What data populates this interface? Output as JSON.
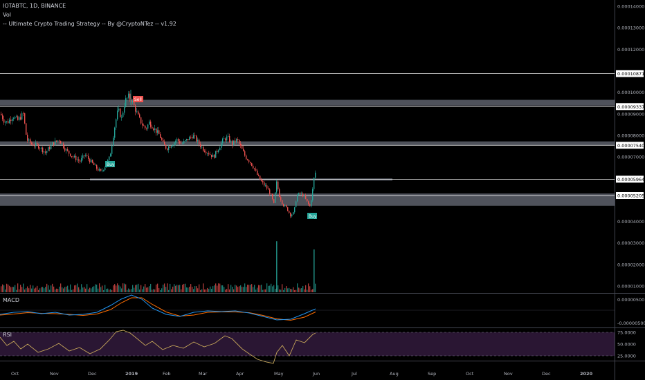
{
  "header": {
    "symbol": "IOTABTC, 1D, BINANCE",
    "vol_label": "Vol",
    "strategy": "-- Ultimate Crypto Trading Strategy -- By @CryptoNTez -- v1.92"
  },
  "panes": {
    "macd_label": "MACD",
    "rsi_label": "RSI"
  },
  "price_axis": {
    "ticks": [
      "0.00014000",
      "0.00013000",
      "0.00012000",
      "0.00010000",
      "0.00009000",
      "0.00008000",
      "0.00007000",
      "0.00004000",
      "0.00003000",
      "0.00002000",
      "0.00001000"
    ],
    "macd_ticks": [
      "0.00000500",
      "-0.00000500"
    ],
    "rsi_ticks": [
      "75.0000",
      "50.0000",
      "25.0000"
    ]
  },
  "level_badges": [
    "0.00010871",
    "0.00009337",
    "0.00007540",
    "0.00005964",
    "0.00005205"
  ],
  "signals": {
    "sell": "Sell",
    "buy1": "Buy",
    "buy2": "Buy"
  },
  "time_axis": [
    "Oct",
    "Nov",
    "Dec",
    "2019",
    "Feb",
    "Mar",
    "Apr",
    "May",
    "Jun",
    "Jul",
    "Aug",
    "Sep",
    "Oct",
    "Nov",
    "Dec",
    "2020"
  ],
  "colors": {
    "up": "#26a69a",
    "down": "#ef5350",
    "zone": "#5d606b",
    "macd_line": "#2196f3",
    "signal_line": "#ff6d00",
    "rsi_line": "#c8a85a",
    "rsi_band": "#2a1633",
    "level_line": "#ffffff"
  },
  "chart_data": {
    "type": "candlestick",
    "price_range": [
      3.6e-05,
      0.000145
    ],
    "horizontal_levels": [
      0.00010871,
      9.337e-05,
      7.54e-05,
      5.964e-05,
      5.205e-05
    ],
    "close_path": [
      [
        0,
        9e-05
      ],
      [
        5,
        8.7e-05
      ],
      [
        10,
        8.6e-05
      ],
      [
        18,
        8.9e-05
      ],
      [
        25,
        8.7e-05
      ],
      [
        33,
        9e-05
      ],
      [
        38,
        7.8e-05
      ],
      [
        45,
        7.6e-05
      ],
      [
        55,
        7.5e-05
      ],
      [
        65,
        7.2e-05
      ],
      [
        75,
        7.6e-05
      ],
      [
        85,
        7.8e-05
      ],
      [
        95,
        7.3e-05
      ],
      [
        105,
        7e-05
      ],
      [
        115,
        6.8e-05
      ],
      [
        122,
        7.1e-05
      ],
      [
        130,
        6.8e-05
      ],
      [
        138,
        6.5e-05
      ],
      [
        145,
        6.3e-05
      ],
      [
        152,
        6.6e-05
      ],
      [
        158,
        7e-05
      ],
      [
        162,
        7.8e-05
      ],
      [
        166,
        8.6e-05
      ],
      [
        170,
        9.2e-05
      ],
      [
        175,
        8.8e-05
      ],
      [
        180,
        9.6e-05
      ],
      [
        185,
        9.8e-05
      ],
      [
        190,
        9.6e-05
      ],
      [
        195,
        9.2e-05
      ],
      [
        200,
        8.8e-05
      ],
      [
        205,
        8.5e-05
      ],
      [
        210,
        8.3e-05
      ],
      [
        215,
        8.6e-05
      ],
      [
        220,
        8.4e-05
      ],
      [
        225,
        8.2e-05
      ],
      [
        230,
        8e-05
      ],
      [
        235,
        7.6e-05
      ],
      [
        240,
        7.4e-05
      ],
      [
        248,
        7.6e-05
      ],
      [
        255,
        7.8e-05
      ],
      [
        262,
        7.6e-05
      ],
      [
        270,
        7.8e-05
      ],
      [
        278,
        8e-05
      ],
      [
        285,
        7.7e-05
      ],
      [
        292,
        7.4e-05
      ],
      [
        300,
        7.2e-05
      ],
      [
        308,
        7e-05
      ],
      [
        315,
        7.4e-05
      ],
      [
        322,
        7.8e-05
      ],
      [
        328,
        7.9e-05
      ],
      [
        335,
        7.6e-05
      ],
      [
        342,
        7.8e-05
      ],
      [
        348,
        7.4e-05
      ],
      [
        354,
        7e-05
      ],
      [
        360,
        6.8e-05
      ],
      [
        366,
        6.5e-05
      ],
      [
        372,
        6.1e-05
      ],
      [
        378,
        5.8e-05
      ],
      [
        384,
        5.6e-05
      ],
      [
        390,
        5.3e-05
      ],
      [
        395,
        4.8e-05
      ],
      [
        399,
        5.8e-05
      ],
      [
        403,
        5.2e-05
      ],
      [
        408,
        4.8e-05
      ],
      [
        414,
        4.6e-05
      ],
      [
        419,
        4.3e-05
      ],
      [
        424,
        4.4e-05
      ],
      [
        428,
        5.2e-05
      ],
      [
        433,
        5.3e-05
      ],
      [
        438,
        5.2e-05
      ],
      [
        443,
        4.9e-05
      ],
      [
        447,
        4.7e-05
      ],
      [
        450,
        5.2e-05
      ],
      [
        453,
        6e-05
      ],
      [
        456,
        6.4e-05
      ]
    ],
    "volume_spikes": [
      [
        399,
        3.08e-05
      ],
      [
        453,
        2.7e-05
      ]
    ],
    "rsi_range": [
      0,
      100
    ]
  }
}
